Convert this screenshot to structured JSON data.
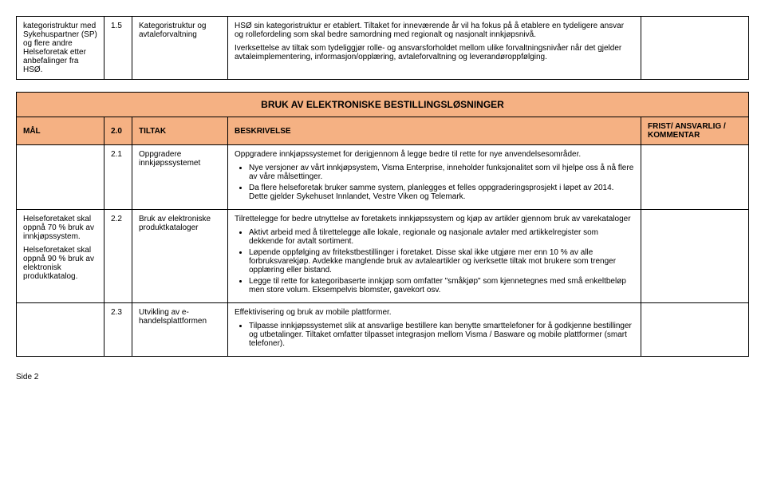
{
  "table1": {
    "rows": [
      {
        "goal": "kategoristruktur med Sykehuspartner (SP) og flere andre Helseforetak etter anbefalinger fra HSØ.",
        "num": "1.5",
        "name": "Kategoristruktur og avtaleforvaltning",
        "desc_p1": "HSØ sin kategoristruktur er etablert. Tiltaket for inneværende år vil ha fokus på å etablere en tydeligere ansvar og rollefordeling som skal bedre samordning med regionalt og nasjonalt innkjøpsnivå.",
        "desc_p2": "Iverksettelse av tiltak som tydeliggjør rolle- og ansvarsforholdet mellom ulike forvaltningsnivåer når det gjelder avtaleimplementering, informasjon/opplæring, avtaleforvaltning og leverandøroppfølging."
      }
    ]
  },
  "table2": {
    "section_title": "BRUK AV ELEKTRONISKE BESTILLINGSLØSNINGER",
    "header": {
      "mal": "MÅL",
      "num": "2.0",
      "tiltak": "TILTAK",
      "beskrivelse": "BESKRIVELSE",
      "frist": "FRIST/ ANSVARLIG / KOMMENTAR"
    },
    "rows": [
      {
        "goal": "",
        "num": "2.1",
        "name": "Oppgradere innkjøpssystemet",
        "desc_p1": "Oppgradere innkjøpssystemet for derigjennom å legge bedre til rette for nye anvendelsesområder.",
        "bullets": [
          "Nye versjoner av vårt innkjøpsystem, Visma Enterprise, inneholder funksjonalitet som vil hjelpe oss å nå flere av våre målsettinger.",
          "Da flere helseforetak bruker samme system, planlegges et felles oppgraderingsprosjekt i løpet av 2014. Dette gjelder Sykehuset Innlandet, Vestre Viken og Telemark."
        ]
      },
      {
        "goal_p1": "Helseforetaket skal oppnå 70 % bruk av innkjøpssystem.",
        "goal_p2": "Helseforetaket skal oppnå 90 % bruk av elektronisk produktkatalog.",
        "num": "2.2",
        "name": "Bruk av elektroniske produktkataloger",
        "desc_p1": "Tilrettelegge for bedre utnyttelse av foretakets innkjøpssystem og kjøp av artikler gjennom bruk av varekataloger",
        "bullets": [
          "Aktivt arbeid med å tilrettelegge alle lokale, regionale og nasjonale avtaler med artikkelregister som dekkende for avtalt sortiment.",
          "Løpende oppfølging av fritekstbestillinger i foretaket. Disse skal ikke utgjøre mer enn 10 % av alle forbruksvarekjøp. Avdekke manglende bruk av avtaleartikler og iverksette tiltak mot brukere som trenger opplæring eller bistand.",
          "Legge til rette for kategoribaserte innkjøp som omfatter \"småkjøp\" som kjennetegnes med små enkeltbeløp men store volum. Eksempelvis blomster, gavekort osv."
        ]
      },
      {
        "goal": "",
        "num": "2.3",
        "name": "Utvikling av e-handelsplattformen",
        "desc_p1": "Effektivisering og bruk av mobile plattformer.",
        "bullets": [
          "Tilpasse innkjøpssystemet slik at ansvarlige bestillere kan benytte smarttelefoner for å godkjenne bestillinger og utbetalinger. Tiltaket omfatter tilpasset integrasjon mellom Visma / Basware og mobile plattformer (smart telefoner)."
        ]
      }
    ]
  },
  "footer": "Side 2"
}
